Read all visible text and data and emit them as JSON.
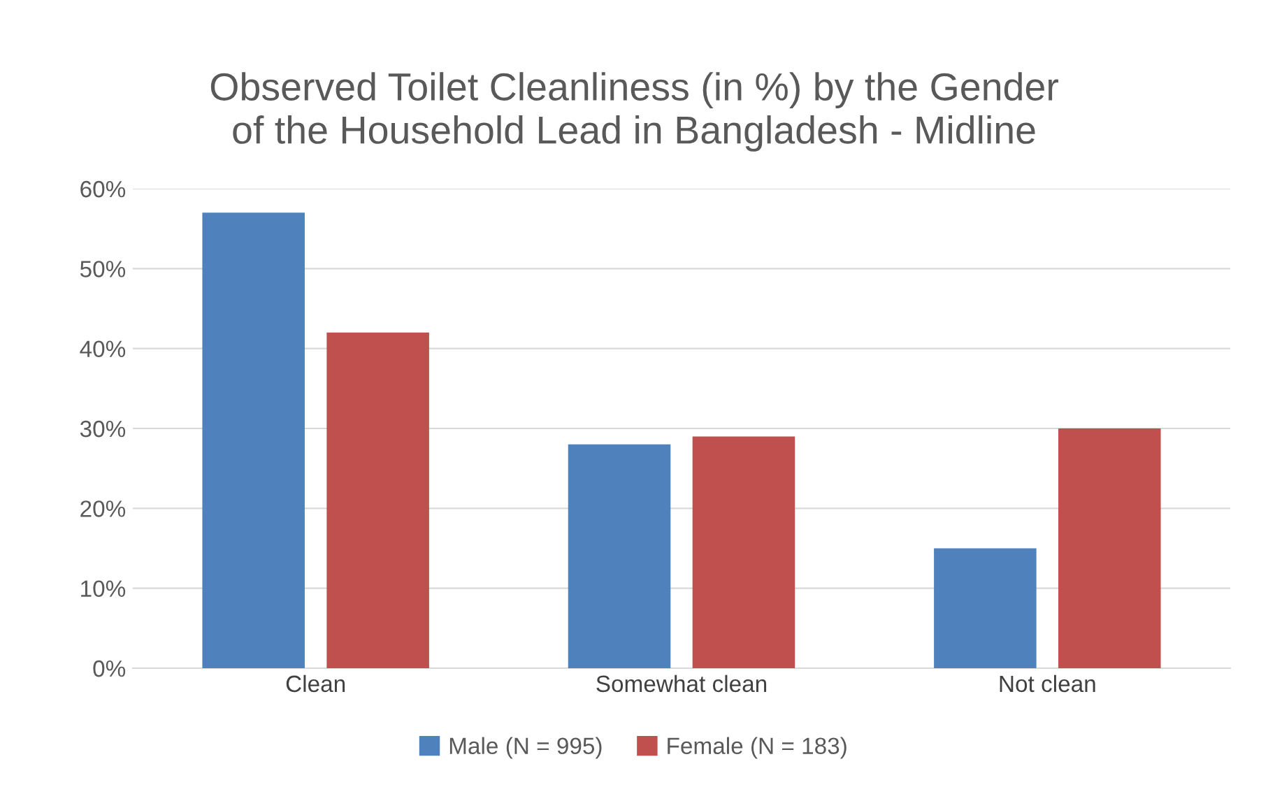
{
  "chart_data": {
    "type": "bar",
    "title": "Observed Toilet Cleanliness (in %) by the Gender\nof the Household Lead in Bangladesh - Midline",
    "categories": [
      "Clean",
      "Somewhat clean",
      "Not clean"
    ],
    "series": [
      {
        "name": "Male (N = 995)",
        "color": "#4f81bd",
        "values": [
          57,
          28,
          15
        ]
      },
      {
        "name": "Female (N = 183)",
        "color": "#c0504d",
        "values": [
          42,
          29,
          30
        ]
      }
    ],
    "ylim": [
      0,
      60
    ],
    "yticks": [
      {
        "value": 0,
        "label": "0%"
      },
      {
        "value": 10,
        "label": "10%"
      },
      {
        "value": 20,
        "label": "20%"
      },
      {
        "value": 30,
        "label": "30%"
      },
      {
        "value": 40,
        "label": "40%"
      },
      {
        "value": 50,
        "label": "50%"
      },
      {
        "value": 60,
        "label": "60%"
      }
    ],
    "grid": "y",
    "legend": "bottom"
  }
}
